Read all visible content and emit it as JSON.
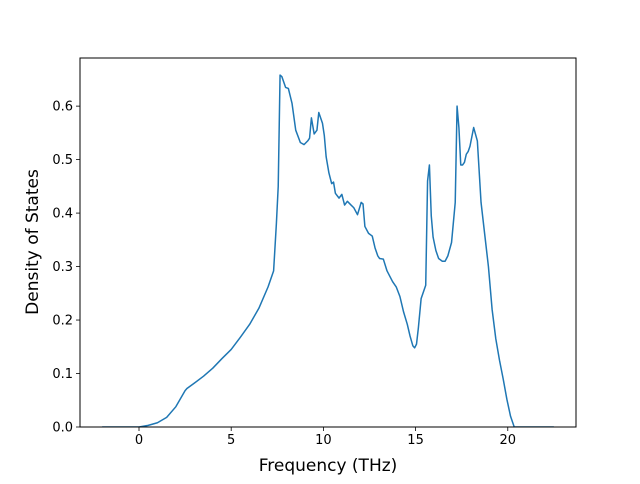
{
  "chart_data": {
    "type": "line",
    "title": "",
    "xlabel": "Frequency (THz)",
    "ylabel": "Density of States",
    "xlim": [
      -3.2,
      23.7
    ],
    "ylim": [
      0.0,
      0.69
    ],
    "grid": false,
    "legend": "none",
    "x_ticks": [
      0,
      5,
      10,
      15,
      20
    ],
    "y_ticks": [
      0.0,
      0.1,
      0.2,
      0.3,
      0.4,
      0.5,
      0.6
    ],
    "x_tick_labels": [
      "0",
      "5",
      "10",
      "15",
      "20"
    ],
    "y_tick_labels": [
      "0.0",
      "0.1",
      "0.2",
      "0.3",
      "0.4",
      "0.5",
      "0.6"
    ],
    "line_color": "#1f77b4",
    "series": [
      {
        "x": [
          -2.0,
          -1.0,
          0.0,
          0.5,
          1.0,
          1.5,
          2.0,
          2.5,
          2.6,
          3.0,
          3.5,
          4.0,
          4.5,
          5.0,
          5.5,
          6.0,
          6.5,
          7.0,
          7.3,
          7.45,
          7.55,
          7.65,
          7.75,
          7.95,
          8.1,
          8.3,
          8.5,
          8.75,
          8.95,
          9.15,
          9.25,
          9.35,
          9.5,
          9.65,
          9.75,
          9.95,
          10.05,
          10.15,
          10.3,
          10.45,
          10.55,
          10.65,
          10.85,
          11.0,
          11.15,
          11.3,
          11.5,
          11.65,
          11.85,
          12.05,
          12.15,
          12.25,
          12.45,
          12.65,
          12.8,
          12.95,
          13.05,
          13.25,
          13.45,
          13.6,
          13.75,
          13.95,
          14.15,
          14.35,
          14.55,
          14.7,
          14.85,
          14.95,
          15.05,
          15.15,
          15.3,
          15.55,
          15.65,
          15.75,
          15.85,
          15.95,
          16.1,
          16.25,
          16.45,
          16.6,
          16.75,
          16.95,
          17.15,
          17.25,
          17.35,
          17.45,
          17.55,
          17.65,
          17.75,
          17.85,
          17.95,
          18.15,
          18.35,
          18.55,
          18.75,
          18.95,
          19.15,
          19.35,
          19.55,
          19.75,
          19.95,
          20.15,
          20.35,
          20.45,
          20.65,
          21.0,
          22.5
        ],
        "y": [
          0.0,
          0.0,
          0.0,
          0.003,
          0.008,
          0.018,
          0.038,
          0.068,
          0.072,
          0.082,
          0.095,
          0.11,
          0.128,
          0.145,
          0.168,
          0.192,
          0.222,
          0.262,
          0.292,
          0.38,
          0.45,
          0.658,
          0.655,
          0.635,
          0.633,
          0.605,
          0.555,
          0.532,
          0.528,
          0.535,
          0.54,
          0.578,
          0.548,
          0.555,
          0.588,
          0.568,
          0.545,
          0.505,
          0.475,
          0.455,
          0.458,
          0.437,
          0.428,
          0.435,
          0.415,
          0.422,
          0.415,
          0.41,
          0.397,
          0.42,
          0.417,
          0.375,
          0.362,
          0.357,
          0.335,
          0.32,
          0.315,
          0.314,
          0.292,
          0.282,
          0.272,
          0.262,
          0.244,
          0.215,
          0.192,
          0.17,
          0.152,
          0.148,
          0.155,
          0.185,
          0.24,
          0.265,
          0.46,
          0.49,
          0.395,
          0.355,
          0.33,
          0.315,
          0.31,
          0.31,
          0.32,
          0.345,
          0.42,
          0.6,
          0.56,
          0.49,
          0.49,
          0.495,
          0.51,
          0.515,
          0.525,
          0.56,
          0.535,
          0.42,
          0.36,
          0.3,
          0.22,
          0.165,
          0.125,
          0.09,
          0.052,
          0.02,
          0.0,
          0.0,
          0.0,
          0.0,
          0.0
        ]
      }
    ]
  }
}
